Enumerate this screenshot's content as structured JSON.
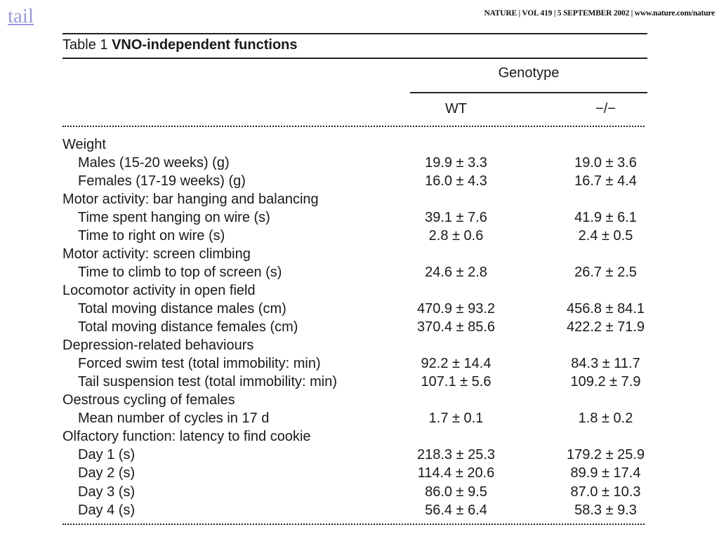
{
  "tail_link": "tail",
  "journal_header": "NATURE | VOL 419 | 5 SEPTEMBER 2002 | www.nature.com/nature",
  "table": {
    "caption_prefix": "Table 1",
    "caption_title": "VNO-independent functions",
    "group_header": "Genotype",
    "col_wt": "WT",
    "col_ko": "−/−",
    "rows": [
      {
        "label": "Weight",
        "wt": "",
        "ko": "",
        "type": "category"
      },
      {
        "label": "Males (15-20 weeks) (g)",
        "wt": "19.9 ± 3.3",
        "ko": "19.0 ± 3.6",
        "type": "sub"
      },
      {
        "label": "Females (17-19 weeks) (g)",
        "wt": "16.0 ± 4.3",
        "ko": "16.7 ± 4.4",
        "type": "sub"
      },
      {
        "label": "Motor activity: bar hanging and balancing",
        "wt": "",
        "ko": "",
        "type": "category"
      },
      {
        "label": "Time spent hanging on wire (s)",
        "wt": "39.1 ± 7.6",
        "ko": "41.9 ± 6.1",
        "type": "sub"
      },
      {
        "label": "Time to right on wire (s)",
        "wt": "2.8 ± 0.6",
        "ko": "2.4 ± 0.5",
        "type": "sub"
      },
      {
        "label": "Motor activity: screen climbing",
        "wt": "",
        "ko": "",
        "type": "category"
      },
      {
        "label": "Time to climb to top of screen (s)",
        "wt": "24.6 ± 2.8",
        "ko": "26.7 ± 2.5",
        "type": "sub"
      },
      {
        "label": "Locomotor activity in open field",
        "wt": "",
        "ko": "",
        "type": "category"
      },
      {
        "label": "Total moving distance males (cm)",
        "wt": "470.9 ± 93.2",
        "ko": "456.8 ± 84.1",
        "type": "sub"
      },
      {
        "label": "Total moving distance females (cm)",
        "wt": "370.4 ± 85.6",
        "ko": "422.2 ± 71.9",
        "type": "sub"
      },
      {
        "label": "Depression-related behaviours",
        "wt": "",
        "ko": "",
        "type": "category"
      },
      {
        "label": "Forced swim test (total immobility: min)",
        "wt": "92.2 ± 14.4",
        "ko": "84.3 ± 11.7",
        "type": "sub"
      },
      {
        "label": "Tail suspension test (total immobility: min)",
        "wt": "107.1 ± 5.6",
        "ko": "109.2 ± 7.9",
        "type": "sub"
      },
      {
        "label": "Oestrous cycling of females",
        "wt": "",
        "ko": "",
        "type": "category"
      },
      {
        "label": "Mean number of cycles in 17 d",
        "wt": "1.7 ± 0.1",
        "ko": "1.8 ± 0.2",
        "type": "sub"
      },
      {
        "label": "Olfactory function: latency to find cookie",
        "wt": "",
        "ko": "",
        "type": "category"
      },
      {
        "label": "Day 1 (s)",
        "wt": "218.3 ± 25.3",
        "ko": "179.2 ± 25.9",
        "type": "sub"
      },
      {
        "label": "Day 2 (s)",
        "wt": "114.4 ± 20.6",
        "ko": "89.9 ± 17.4",
        "type": "sub"
      },
      {
        "label": "Day 3 (s)",
        "wt": "86.0 ± 9.5",
        "ko": "87.0 ± 10.3",
        "type": "sub"
      },
      {
        "label": "Day 4 (s)",
        "wt": "56.4 ± 6.4",
        "ko": "58.3 ± 9.3",
        "type": "sub"
      }
    ]
  }
}
